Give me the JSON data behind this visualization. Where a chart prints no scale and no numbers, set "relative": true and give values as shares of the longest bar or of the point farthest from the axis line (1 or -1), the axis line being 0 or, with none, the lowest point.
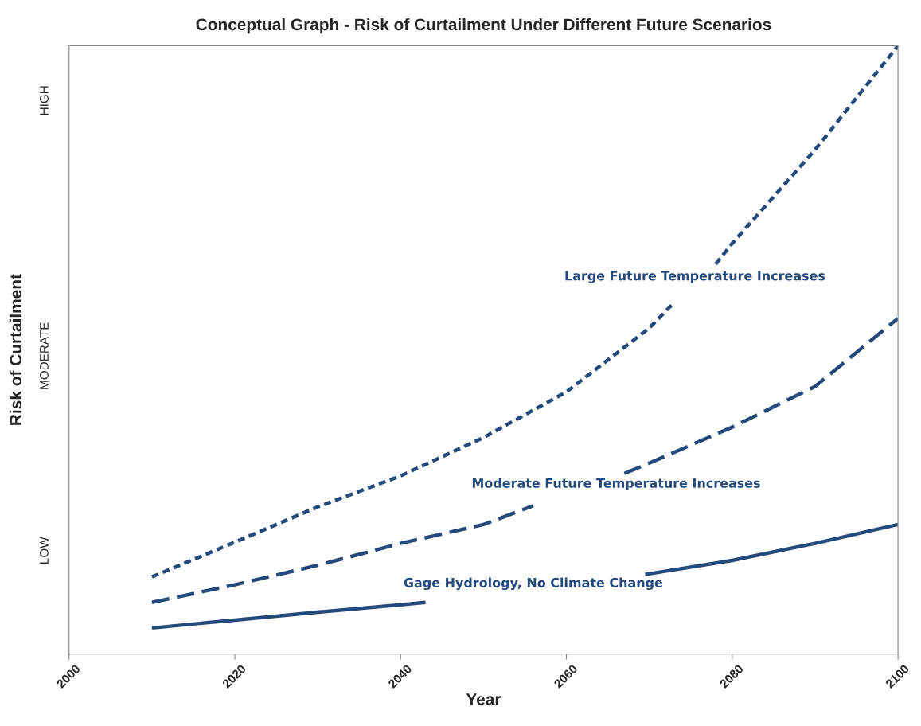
{
  "chart_data": {
    "type": "line",
    "title": "Conceptual Graph - Risk of Curtailment Under Different Future Scenarios",
    "xlabel": "Year",
    "ylabel": "Risk of Curtailment",
    "relative": true,
    "annotations": [
      "LOW",
      "MODERATE",
      "HIGH"
    ],
    "series": [
      {
        "name": "Large Future Temperature Increases",
        "color": "#244a7c",
        "line_style": "dotted",
        "x": [
          2010,
          2020,
          2030,
          2040,
          2050,
          2060,
          2070,
          2073,
          2075.5,
          2078,
          2080,
          2090,
          2100
        ],
        "values": [
          0.127,
          0.184,
          0.242,
          0.293,
          0.356,
          0.431,
          0.536,
          0.578,
          null,
          0.641,
          0.675,
          0.829,
          1
        ]
      },
      {
        "name": "Moderate Future Temperature Increases",
        "color": "#244a7c",
        "line_style": "dashed",
        "x": [
          2010,
          2020,
          2030,
          2040,
          2050,
          2056,
          2066,
          2067,
          2070,
          2080,
          2090,
          2100
        ],
        "values": [
          0.085,
          0.114,
          0.146,
          0.182,
          0.213,
          0.244,
          null,
          0.297,
          0.314,
          0.373,
          0.44,
          0.552
        ]
      },
      {
        "name": "Gage Hydrology, No Climate Change",
        "color": "#244a7c",
        "line_style": "solid",
        "x": [
          2010,
          2020,
          2030,
          2040,
          2043,
          2056,
          2069.5,
          2080,
          2090,
          2100
        ],
        "values": [
          0.043,
          0.056,
          0.069,
          0.081,
          0.085,
          null,
          0.131,
          0.154,
          0.182,
          0.213
        ]
      }
    ],
    "xlim": [
      2000,
      2100
    ],
    "xticks": [
      2000,
      2020,
      2040,
      2060,
      2080,
      2100
    ],
    "grid": false,
    "legend": false,
    "marker": "none"
  }
}
